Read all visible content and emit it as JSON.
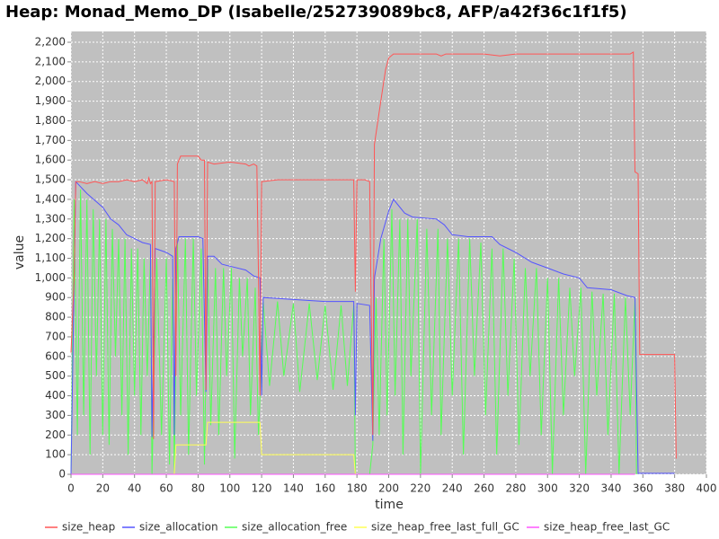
{
  "chart_data": {
    "type": "line",
    "title": "Heap: Monad_Memo_DP (Isabelle/252739089bc8, AFP/a42f36c1f1f5)",
    "x_label": "time",
    "y_label": "value",
    "xlim": [
      0,
      400
    ],
    "ylim": [
      0,
      2255
    ],
    "xticks": [
      0,
      20,
      40,
      60,
      80,
      100,
      120,
      140,
      160,
      180,
      200,
      220,
      240,
      260,
      280,
      300,
      320,
      340,
      360,
      380,
      400
    ],
    "yticks": [
      0,
      100,
      200,
      300,
      400,
      500,
      600,
      700,
      800,
      900,
      {
        "value": 1000,
        "label": "1,000"
      },
      {
        "value": 1100,
        "label": "1,100"
      },
      {
        "value": 1200,
        "label": "1,200"
      },
      {
        "value": 1300,
        "label": "1,300"
      },
      {
        "value": 1400,
        "label": "1,400"
      },
      {
        "value": 1500,
        "label": "1,500"
      },
      {
        "value": 1600,
        "label": "1,600"
      },
      {
        "value": 1700,
        "label": "1,700"
      },
      {
        "value": 1800,
        "label": "1,800"
      },
      {
        "value": 1900,
        "label": "1,900"
      },
      {
        "value": 2000,
        "label": "2,000"
      },
      {
        "value": 2100,
        "label": "2,100"
      },
      {
        "value": 2200,
        "label": "2,200"
      }
    ],
    "grid": true,
    "legend": "bottom",
    "series": [
      {
        "name": "size_heap",
        "color": "#ff5555",
        "x": [
          0,
          2,
          3,
          5,
          10,
          15,
          20,
          25,
          30,
          35,
          40,
          45,
          48,
          49,
          50,
          51,
          52,
          53,
          60,
          65,
          66,
          67,
          69,
          80,
          82,
          84,
          85,
          86,
          90,
          100,
          110,
          112,
          115,
          117,
          118,
          119,
          120,
          130,
          150,
          170,
          178,
          179,
          180,
          185,
          188,
          190,
          191,
          195,
          198,
          200,
          203,
          210,
          220,
          230,
          233,
          236,
          250,
          260,
          270,
          280,
          300,
          320,
          340,
          352,
          354,
          355,
          357,
          358,
          380,
          381
        ],
        "values": [
          620,
          1000,
          1490,
          1490,
          1480,
          1490,
          1480,
          1490,
          1490,
          1500,
          1490,
          1500,
          1480,
          1510,
          1480,
          1490,
          180,
          1490,
          1500,
          1490,
          500,
          1580,
          1620,
          1620,
          1600,
          1600,
          430,
          1590,
          1580,
          1590,
          1580,
          1570,
          1580,
          1570,
          1010,
          400,
          1490,
          1500,
          1500,
          1500,
          1500,
          930,
          1500,
          1500,
          1490,
          200,
          1680,
          1900,
          2060,
          2120,
          2140,
          2140,
          2140,
          2140,
          2130,
          2140,
          2140,
          2140,
          2130,
          2140,
          2140,
          2140,
          2140,
          2140,
          2150,
          1540,
          1530,
          610,
          610,
          80
        ]
      },
      {
        "name": "size_allocation",
        "color": "#5555ff",
        "x": [
          0,
          2,
          3,
          10,
          20,
          25,
          30,
          35,
          40,
          45,
          50,
          51,
          53,
          60,
          64,
          65,
          66,
          68,
          80,
          83,
          85,
          86,
          90,
          95,
          100,
          110,
          115,
          119,
          120,
          121,
          140,
          160,
          178,
          179,
          180,
          188,
          190,
          191,
          195,
          200,
          203,
          210,
          215,
          230,
          235,
          240,
          250,
          265,
          270,
          280,
          290,
          300,
          310,
          320,
          325,
          340,
          350,
          355,
          357,
          380
        ],
        "values": [
          0,
          1000,
          1490,
          1430,
          1360,
          1300,
          1270,
          1220,
          1200,
          1180,
          1170,
          190,
          1150,
          1130,
          1110,
          200,
          1150,
          1210,
          1210,
          1200,
          420,
          1110,
          1110,
          1070,
          1060,
          1040,
          1010,
          1000,
          400,
          900,
          890,
          880,
          880,
          300,
          870,
          860,
          170,
          1000,
          1200,
          1340,
          1400,
          1330,
          1310,
          1300,
          1270,
          1220,
          1210,
          1210,
          1170,
          1130,
          1080,
          1050,
          1020,
          1000,
          950,
          940,
          910,
          900,
          5,
          5
        ]
      },
      {
        "name": "size_allocation_free",
        "color": "#55ff55",
        "x": [
          0,
          2,
          4,
          6,
          8,
          10,
          12,
          14,
          16,
          18,
          20,
          22,
          24,
          26,
          28,
          30,
          32,
          34,
          36,
          38,
          40,
          42,
          44,
          46,
          48,
          50,
          51,
          54,
          57,
          60,
          62,
          64,
          65,
          67,
          69,
          72,
          74,
          77,
          79,
          82,
          84,
          86,
          88,
          91,
          93,
          96,
          98,
          101,
          103,
          106,
          108,
          111,
          113,
          116,
          118,
          119,
          121,
          125,
          130,
          134,
          140,
          144,
          150,
          155,
          160,
          165,
          170,
          174,
          178,
          179,
          188,
          190,
          192,
          194,
          197,
          199,
          202,
          204,
          207,
          209,
          212,
          214,
          218,
          220,
          224,
          227,
          231,
          233,
          237,
          240,
          244,
          247,
          251,
          254,
          258,
          261,
          265,
          268,
          272,
          275,
          279,
          282,
          286,
          289,
          293,
          296,
          300,
          303,
          307,
          310,
          314,
          317,
          321,
          324,
          328,
          331,
          335,
          338,
          342,
          345,
          349,
          352,
          355,
          356
        ],
        "values": [
          0,
          1400,
          200,
          1450,
          300,
          1400,
          100,
          1350,
          500,
          1300,
          200,
          1300,
          150,
          1250,
          600,
          1200,
          300,
          1200,
          100,
          1150,
          400,
          1150,
          200,
          1100,
          500,
          1100,
          0,
          1100,
          200,
          1100,
          50,
          1000,
          0,
          1200,
          300,
          1200,
          100,
          1200,
          400,
          1150,
          50,
          1100,
          250,
          1050,
          200,
          1050,
          500,
          1050,
          80,
          1000,
          600,
          1000,
          300,
          950,
          200,
          400,
          880,
          450,
          880,
          500,
          870,
          420,
          870,
          480,
          860,
          430,
          860,
          450,
          860,
          0,
          0,
          150,
          900,
          200,
          1200,
          300,
          1350,
          400,
          1300,
          100,
          1300,
          500,
          1300,
          0,
          1250,
          300,
          1250,
          200,
          1200,
          400,
          1200,
          100,
          1200,
          500,
          1180,
          300,
          1150,
          100,
          1150,
          400,
          1100,
          150,
          1050,
          500,
          1050,
          200,
          1000,
          0,
          1000,
          300,
          950,
          500,
          950,
          0,
          930,
          400,
          920,
          200,
          920,
          0,
          900,
          300,
          890,
          0
        ]
      },
      {
        "name": "size_heap_free_last_full_GC",
        "color": "#ffff55",
        "x": [
          0,
          65,
          66,
          85,
          86,
          119,
          120,
          178,
          179,
          355
        ],
        "values": [
          0,
          0,
          150,
          150,
          265,
          265,
          100,
          100,
          0,
          0
        ]
      },
      {
        "name": "size_heap_free_last_GC",
        "color": "#ff55ff",
        "x": [
          0,
          355
        ],
        "values": [
          0,
          0
        ]
      }
    ]
  }
}
